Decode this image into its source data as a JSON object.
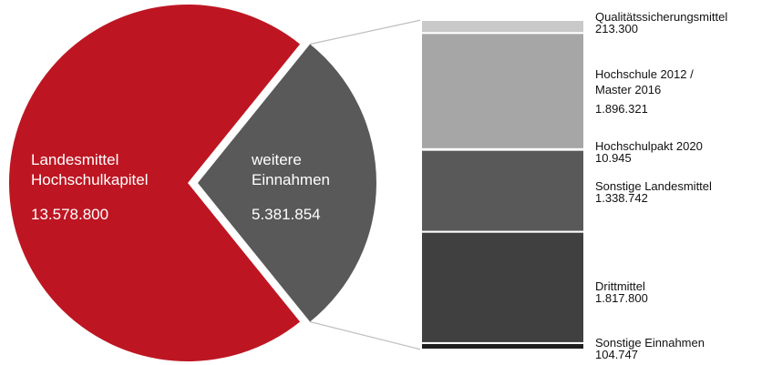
{
  "chart_data": {
    "type": "bar-of-pie",
    "pie": {
      "slices": [
        {
          "lines": [
            "Landesmittel",
            "Hochschulkapitel"
          ],
          "value_label": "13.578.800",
          "value": 13578800,
          "color": "#bd1622"
        },
        {
          "lines": [
            "weitere",
            "Einnahmen"
          ],
          "value_label": "5.381.854",
          "value": 5381854,
          "color": "#595959"
        }
      ]
    },
    "stacked_bar": {
      "segments": [
        {
          "lines": [
            "Qualitätssicherungsmittel"
          ],
          "value_label": "213.300",
          "value": 213300,
          "color": "#c9c9c9"
        },
        {
          "lines": [
            "Hochschule 2012 /",
            "Master 2016"
          ],
          "value_label": "1.896.321",
          "value": 1896321,
          "color": "#a6a6a6"
        },
        {
          "lines": [
            "Hochschulpakt 2020"
          ],
          "value_label": "10.945",
          "value": 10945,
          "color": "#808080"
        },
        {
          "lines": [
            "Sonstige Landesmittel"
          ],
          "value_label": "1.338.742",
          "value": 1338742,
          "color": "#595959"
        },
        {
          "lines": [
            "Drittmittel"
          ],
          "value_label": "1.817.800",
          "value": 1817800,
          "color": "#404040"
        },
        {
          "lines": [
            "Sonstige Einnahmen"
          ],
          "value_label": "104.747",
          "value": 104747,
          "color": "#1f1f1f"
        }
      ]
    },
    "connector_color": "#bfbfbf"
  }
}
